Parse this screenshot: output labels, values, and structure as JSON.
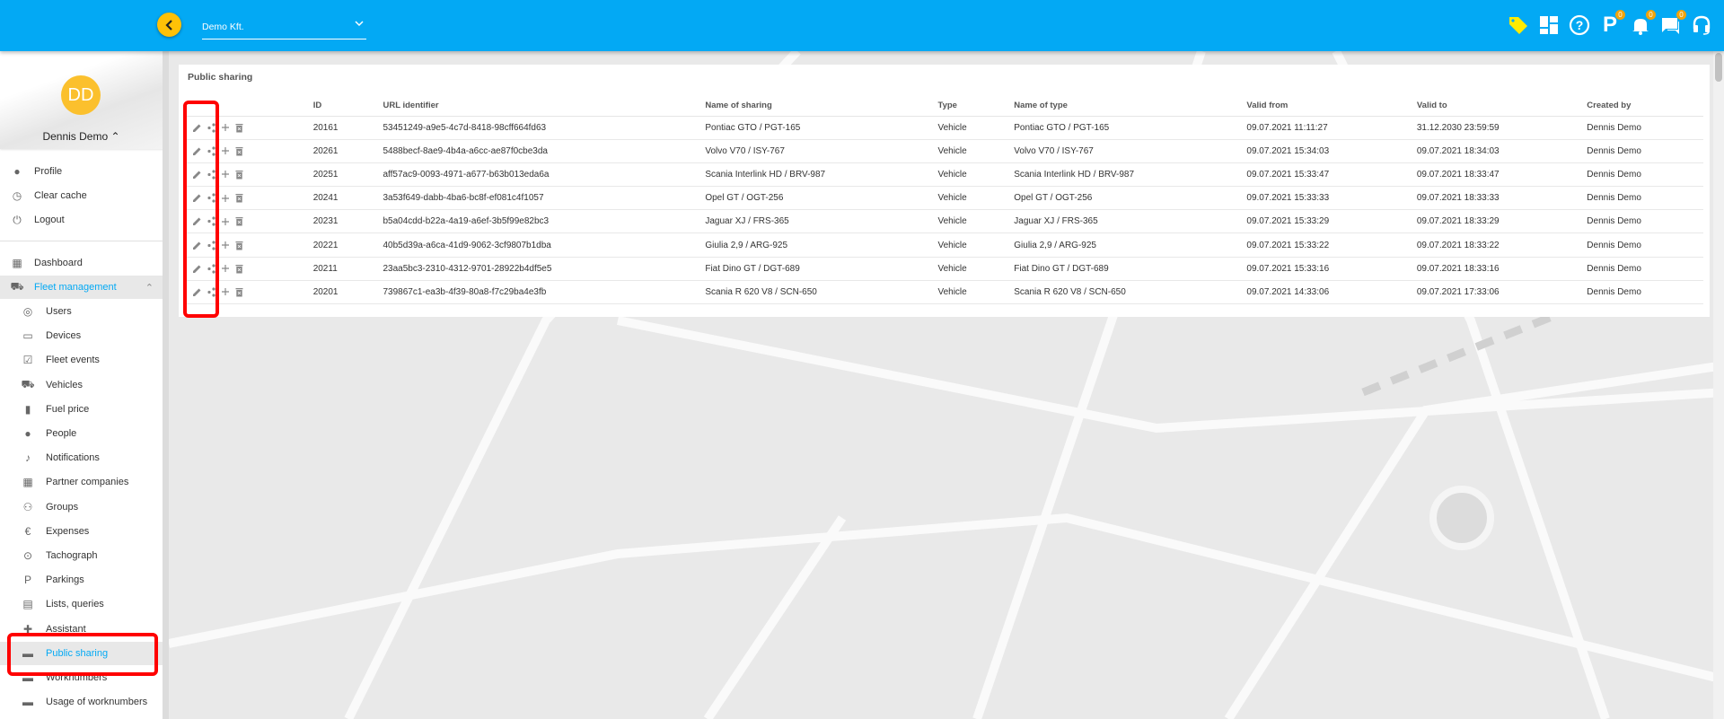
{
  "header": {
    "company": "Demo Kft.",
    "badges": {
      "parking": "0",
      "notifications": "0",
      "messages": "0"
    },
    "accent": "#03a9f4"
  },
  "sidebar": {
    "avatar_initials": "DD",
    "user_name": "Dennis Demo",
    "profile_menu": [
      {
        "label": "Profile",
        "icon": "person-icon"
      },
      {
        "label": "Clear cache",
        "icon": "clock-icon"
      },
      {
        "label": "Logout",
        "icon": "power-icon"
      }
    ],
    "dashboard": "Dashboard",
    "fleet_management": "Fleet management",
    "items": [
      {
        "label": "Users",
        "icon": "fingerprint-icon"
      },
      {
        "label": "Devices",
        "icon": "devices-icon"
      },
      {
        "label": "Fleet events",
        "icon": "calendar-check-icon"
      },
      {
        "label": "Vehicles",
        "icon": "car-icon"
      },
      {
        "label": "Fuel price",
        "icon": "fuel-icon"
      },
      {
        "label": "People",
        "icon": "person-icon"
      },
      {
        "label": "Notifications",
        "icon": "bell-icon"
      },
      {
        "label": "Partner companies",
        "icon": "building-icon"
      },
      {
        "label": "Groups",
        "icon": "group-icon"
      },
      {
        "label": "Expenses",
        "icon": "euro-icon"
      },
      {
        "label": "Tachograph",
        "icon": "tachograph-icon"
      },
      {
        "label": "Parkings",
        "icon": "parking-icon"
      },
      {
        "label": "Lists, queries",
        "icon": "chart-icon"
      },
      {
        "label": "Assistant",
        "icon": "assistant-icon"
      },
      {
        "label": "Public sharing",
        "icon": "share-screen-icon",
        "active": true
      },
      {
        "label": "Worknumbers",
        "icon": "share-screen-icon"
      },
      {
        "label": "Usage of worknumbers",
        "icon": "share-screen-icon"
      }
    ]
  },
  "main": {
    "title": "Public sharing",
    "columns": [
      "ID",
      "URL identifier",
      "Name of sharing",
      "Type",
      "Name of type",
      "Valid from",
      "Valid to",
      "Created by"
    ],
    "rows": [
      [
        "20161",
        "53451249-a9e5-4c7d-8418-98cff664fd63",
        "Pontiac GTO / PGT-165",
        "Vehicle",
        "Pontiac GTO / PGT-165",
        "09.07.2021 11:11:27",
        "31.12.2030 23:59:59",
        "Dennis Demo"
      ],
      [
        "20261",
        "5488becf-8ae9-4b4a-a6cc-ae87f0cbe3da",
        "Volvo V70 / ISY-767",
        "Vehicle",
        "Volvo V70 / ISY-767",
        "09.07.2021 15:34:03",
        "09.07.2021 18:34:03",
        "Dennis Demo"
      ],
      [
        "20251",
        "aff57ac9-0093-4971-a677-b63b013eda6a",
        "Scania Interlink HD / BRV-987",
        "Vehicle",
        "Scania Interlink HD / BRV-987",
        "09.07.2021 15:33:47",
        "09.07.2021 18:33:47",
        "Dennis Demo"
      ],
      [
        "20241",
        "3a53f649-dabb-4ba6-bc8f-ef081c4f1057",
        "Opel GT / OGT-256",
        "Vehicle",
        "Opel GT / OGT-256",
        "09.07.2021 15:33:33",
        "09.07.2021 18:33:33",
        "Dennis Demo"
      ],
      [
        "20231",
        "b5a04cdd-b22a-4a19-a6ef-3b5f99e82bc3",
        "Jaguar XJ / FRS-365",
        "Vehicle",
        "Jaguar XJ / FRS-365",
        "09.07.2021 15:33:29",
        "09.07.2021 18:33:29",
        "Dennis Demo"
      ],
      [
        "20221",
        "40b5d39a-a6ca-41d9-9062-3cf9807b1dba",
        "Giulia 2,9 / ARG-925",
        "Vehicle",
        "Giulia 2,9 / ARG-925",
        "09.07.2021 15:33:22",
        "09.07.2021 18:33:22",
        "Dennis Demo"
      ],
      [
        "20211",
        "23aa5bc3-2310-4312-9701-28922b4df5e5",
        "Fiat Dino GT / DGT-689",
        "Vehicle",
        "Fiat Dino GT / DGT-689",
        "09.07.2021 15:33:16",
        "09.07.2021 18:33:16",
        "Dennis Demo"
      ],
      [
        "20201",
        "739867c1-ea3b-4f39-80a8-f7c29ba4e3fb",
        "Scania R 620 V8 / SCN-650",
        "Vehicle",
        "Scania R 620 V8 / SCN-650",
        "09.07.2021 14:33:06",
        "09.07.2021 17:33:06",
        "Dennis Demo"
      ]
    ]
  }
}
